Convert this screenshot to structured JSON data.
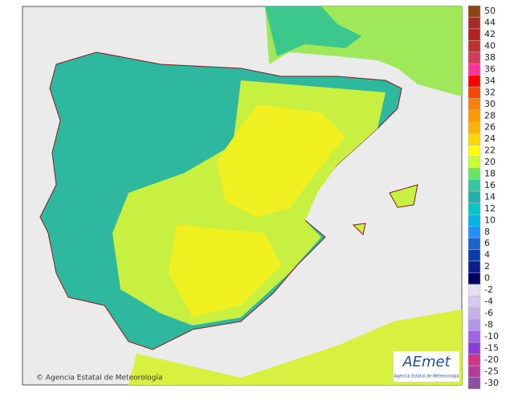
{
  "map": {
    "copyright": "© Agencia Estatal de Meteorología",
    "logo": {
      "name": "AEmet",
      "subtitle": "Agencia Estatal de Meteorología"
    }
  },
  "legend": {
    "upper": {
      "labels": [
        50,
        44,
        42,
        40,
        38,
        36,
        34,
        32,
        30,
        28,
        26,
        24,
        22,
        20,
        18,
        16,
        14,
        12,
        10,
        8,
        6,
        4,
        2,
        0
      ],
      "colors": [
        "#8b4513",
        "#a52a2a",
        "#b22222",
        "#c03030",
        "#d03c5a",
        "#ff3399",
        "#ff0000",
        "#ff4500",
        "#ff7f00",
        "#ff9900",
        "#ffb300",
        "#ffd700",
        "#ffff00",
        "#c8ff32",
        "#64e664",
        "#32c8a0",
        "#20b2aa",
        "#00c8c8",
        "#00b4e6",
        "#1e90ff",
        "#1464d2",
        "#0a3cb4",
        "#0a1e8c",
        "#000064"
      ]
    },
    "lower": {
      "labels": [
        -2,
        -4,
        -6,
        -8,
        -10,
        -15,
        -20,
        -25,
        -30
      ],
      "colors": [
        "#e6e0f0",
        "#d8c8ee",
        "#c8b0e8",
        "#b496e6",
        "#a064e6",
        "#8c3cdc",
        "#d2328c",
        "#b43c96",
        "#8c50a0"
      ]
    }
  }
}
